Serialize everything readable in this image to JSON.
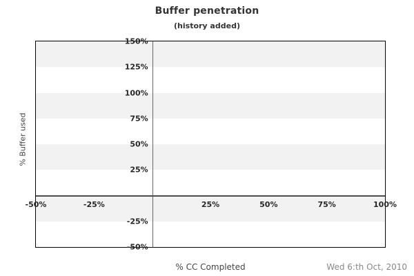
{
  "chart_data": {
    "type": "line",
    "title": "Buffer penetration",
    "subtitle": "(history added)",
    "xlabel": "% CC Completed",
    "ylabel": "% Buffer used",
    "footer_date": "Wed 6:th Oct, 2010",
    "xlim": [
      -50,
      100
    ],
    "ylim": [
      -50,
      150
    ],
    "x_ticks": [
      {
        "value": -50,
        "label": "-50%"
      },
      {
        "value": -25,
        "label": "-25%"
      },
      {
        "value": 25,
        "label": "25%"
      },
      {
        "value": 50,
        "label": "50%"
      },
      {
        "value": 75,
        "label": "75%"
      },
      {
        "value": 100,
        "label": "100%"
      }
    ],
    "y_ticks": [
      {
        "value": 150,
        "label": "150%"
      },
      {
        "value": 125,
        "label": "125%"
      },
      {
        "value": 100,
        "label": "100%"
      },
      {
        "value": 75,
        "label": "75%"
      },
      {
        "value": 50,
        "label": "50%"
      },
      {
        "value": 25,
        "label": "25%"
      },
      {
        "value": -25,
        "label": "-25%"
      },
      {
        "value": -50,
        "label": "-50%"
      }
    ],
    "gray_bands": [
      [
        125,
        150
      ],
      [
        75,
        100
      ],
      [
        25,
        50
      ],
      [
        -25,
        0
      ]
    ],
    "series": [],
    "legend": null,
    "grid": "alternating horizontal 25% bands, no gridlines",
    "colors": {
      "background": "#ffffff",
      "band": "#f2f2f2",
      "plot_border": "#000000",
      "x_axis_line": "#4d4d4d",
      "y_axis_line": "#666666",
      "title_text": "#333333",
      "tick_text": "#262626",
      "axis_label_text": "#444444",
      "date_text": "#888888"
    }
  }
}
